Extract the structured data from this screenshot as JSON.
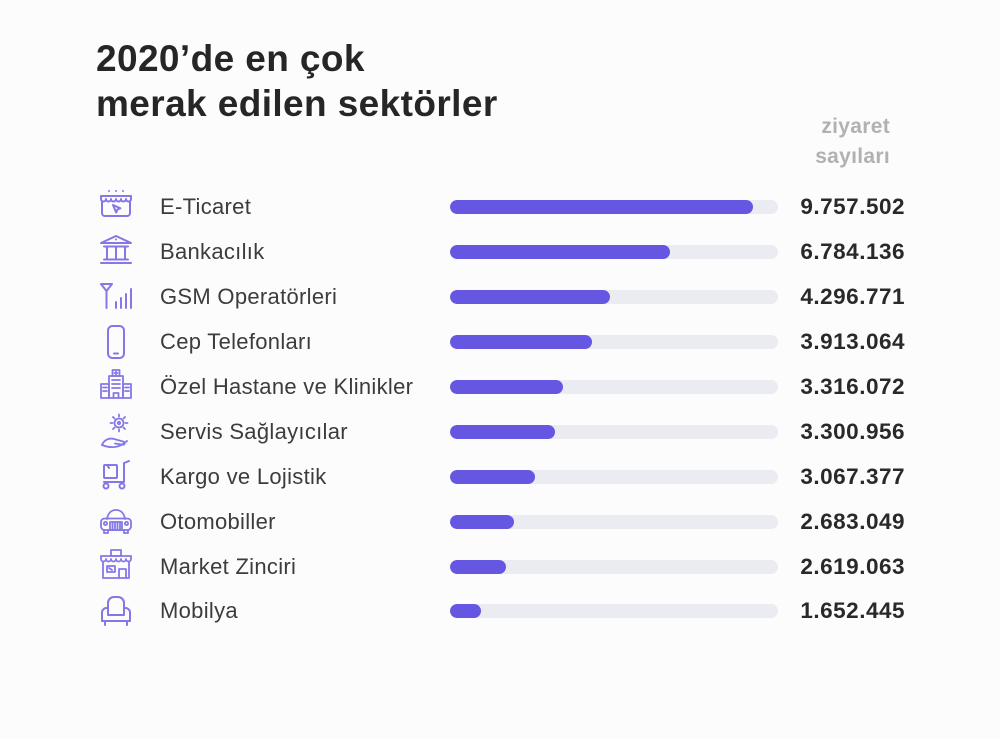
{
  "page": {
    "background": "#fcfcfc"
  },
  "colors": {
    "background": "#fcfcfc",
    "title": "#262626",
    "label": "#3c3c3e",
    "value": "#29292b",
    "muted": "#b1b1b4",
    "bar-fill": "#6557e2",
    "bar-track": "#ebebf2",
    "icon": "#8478e6"
  },
  "header": {
    "title_line1": "2020’de en çok",
    "title_line2": "merak edilen sektörler",
    "visits_label_line1": "ziyaret",
    "visits_label_line2": "sayıları"
  },
  "chart_data": {
    "type": "bar",
    "orientation": "horizontal",
    "title": "2020’de en çok merak edilen sektörler",
    "value_header": "ziyaret sayıları",
    "legend": false,
    "grid": false,
    "xlim": [
      0,
      10560000
    ],
    "categories": [
      "E-Ticaret",
      "Bankacılık",
      "GSM Operatörleri",
      "Cep Telefonları",
      "Özel Hastane ve Klinikler",
      "Servis Sağlayıcılar",
      "Kargo ve Lojistik",
      "Otomobiller",
      "Market Zinciri",
      "Mobilya"
    ],
    "values": [
      9757502,
      6784136,
      4296771,
      3913064,
      3316072,
      3300956,
      3067377,
      2683049,
      2619063,
      1652445
    ],
    "rows": [
      {
        "label": "E-Ticaret",
        "value_display": "9.757.502",
        "value": 9757502,
        "icon": "storefront-cursor-icon",
        "bar_pct": 92.4
      },
      {
        "label": "Bankacılık",
        "value_display": "6.784.136",
        "value": 6784136,
        "icon": "bank-icon",
        "bar_pct": 67.1
      },
      {
        "label": "GSM Operatörleri",
        "value_display": "4.296.771",
        "value": 4296771,
        "icon": "antenna-signal-icon",
        "bar_pct": 48.8
      },
      {
        "label": "Cep Telefonları",
        "value_display": "3.913.064",
        "value": 3913064,
        "icon": "smartphone-icon",
        "bar_pct": 43.3
      },
      {
        "label": "Özel Hastane ve Klinikler",
        "value_display": "3.316.072",
        "value": 3316072,
        "icon": "hospital-icon",
        "bar_pct": 34.5
      },
      {
        "label": "Servis Sağlayıcılar",
        "value_display": "3.300.956",
        "value": 3300956,
        "icon": "hand-gear-icon",
        "bar_pct": 32.0
      },
      {
        "label": "Kargo ve Lojistik",
        "value_display": "3.067.377",
        "value": 3067377,
        "icon": "handtruck-icon",
        "bar_pct": 25.9
      },
      {
        "label": "Otomobiller",
        "value_display": "2.683.049",
        "value": 2683049,
        "icon": "car-icon",
        "bar_pct": 19.5
      },
      {
        "label": "Market Zinciri",
        "value_display": "2.619.063",
        "value": 2619063,
        "icon": "shop-icon",
        "bar_pct": 17.1
      },
      {
        "label": "Mobilya",
        "value_display": "1.652.445",
        "value": 1652445,
        "icon": "armchair-icon",
        "bar_pct": 9.5
      }
    ]
  }
}
